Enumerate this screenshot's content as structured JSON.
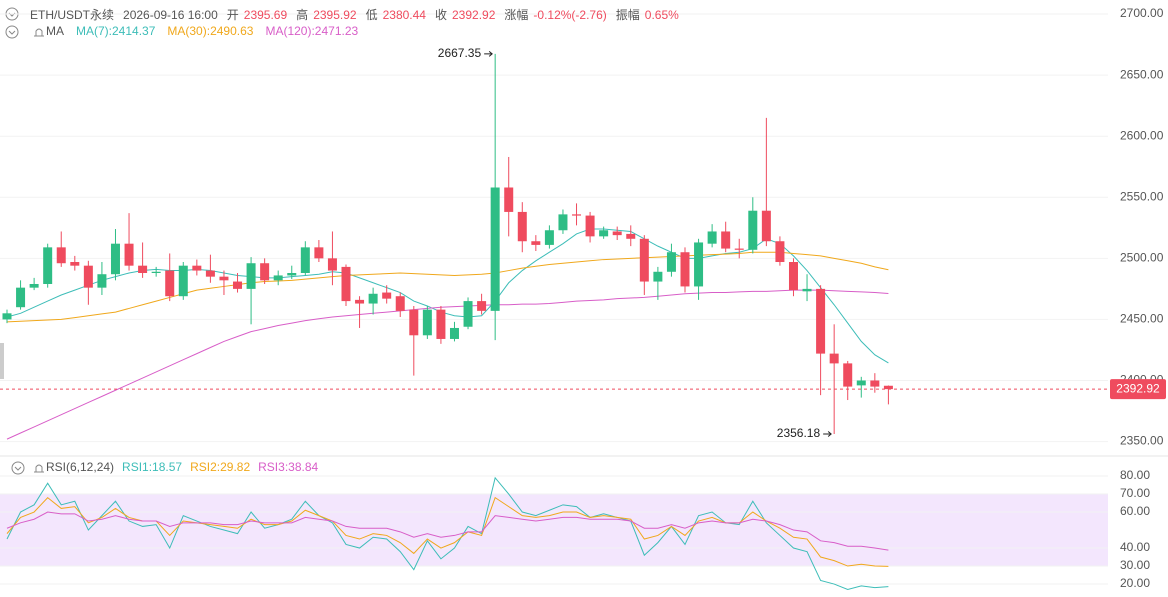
{
  "header": {
    "symbol": "ETH/USDT永续",
    "time": "2026-09-16 16:00",
    "open_label": "开",
    "high_label": "高",
    "low_label": "低",
    "close_label": "收",
    "change_label": "涨幅",
    "change": "-0.12%(-2.76)",
    "amplitude_label": "振幅",
    "amplitude": "0.65%",
    "ma_label": "MA"
  },
  "chart_data": [
    {
      "type": "candlestick",
      "up_color": "#2ebd85",
      "down_color": "#ef4b5e",
      "open": [
        2450,
        2460,
        2476,
        2479,
        2509,
        2497,
        2494,
        2476,
        2487,
        2512,
        2494,
        2488,
        2490,
        2469,
        2494,
        2490,
        2485,
        2481,
        2475,
        2496,
        2482,
        2486,
        2488,
        2509,
        2500,
        2493,
        2466,
        2463,
        2472,
        2469,
        2458,
        2437,
        2458,
        2434,
        2444,
        2465,
        2457,
        2558,
        2538,
        2514,
        2511,
        2523,
        2536,
        2535,
        2518,
        2522,
        2520,
        2516,
        2481,
        2489,
        2505,
        2477,
        2512,
        2522,
        2508,
        2507,
        2539,
        2514,
        2497,
        2473,
        2475,
        2422,
        2414,
        2396,
        2400,
        2395.69
      ],
      "high": [
        2458,
        2482,
        2484,
        2512,
        2522,
        2502,
        2498,
        2497,
        2524,
        2537,
        2513,
        2493,
        2504,
        2497,
        2499,
        2503,
        2490,
        2488,
        2501,
        2500,
        2490,
        2494,
        2514,
        2515,
        2522,
        2495,
        2469,
        2476,
        2478,
        2472,
        2461,
        2461,
        2461,
        2448,
        2468,
        2471,
        2667.35,
        2583,
        2546,
        2519,
        2527,
        2540,
        2545,
        2538,
        2526,
        2526,
        2527,
        2519,
        2493,
        2512,
        2509,
        2516,
        2528,
        2530,
        2516,
        2550,
        2615,
        2518,
        2500,
        2487,
        2478,
        2446,
        2416,
        2403,
        2406,
        2395.92
      ],
      "low": [
        2447,
        2458,
        2474,
        2476,
        2493,
        2490,
        2462,
        2470,
        2482,
        2490,
        2484,
        2485,
        2465,
        2466,
        2486,
        2480,
        2470,
        2472,
        2446,
        2479,
        2478,
        2483,
        2486,
        2497,
        2478,
        2461,
        2443,
        2454,
        2463,
        2452,
        2404,
        2434,
        2430,
        2432,
        2442,
        2454,
        2433,
        2518,
        2505,
        2506,
        2508,
        2520,
        2527,
        2513,
        2516,
        2515,
        2510,
        2470,
        2466,
        2485,
        2472,
        2466,
        2509,
        2505,
        2500,
        2504,
        2510,
        2494,
        2469,
        2465,
        2388,
        2356.18,
        2384,
        2386,
        2390,
        2380.44
      ],
      "close": [
        2455,
        2476,
        2479,
        2509,
        2496,
        2494,
        2476,
        2487,
        2512,
        2494,
        2488,
        2489,
        2469,
        2494,
        2490,
        2485,
        2482,
        2475,
        2496,
        2482,
        2486,
        2488,
        2509,
        2500,
        2490,
        2465,
        2463,
        2471,
        2467,
        2457,
        2437,
        2458,
        2434,
        2443,
        2465,
        2457,
        2558,
        2538,
        2514,
        2511,
        2523,
        2536,
        2535,
        2518,
        2523,
        2519,
        2516,
        2481,
        2489,
        2505,
        2477,
        2513,
        2522,
        2508,
        2507,
        2539,
        2514,
        2497,
        2474,
        2475,
        2422,
        2414,
        2395,
        2400,
        2395,
        2392.92
      ],
      "series": [
        {
          "name": "MA(7):2414.37",
          "color": "#3dbdb8",
          "values": [
            2452,
            2455,
            2460,
            2465,
            2470,
            2474,
            2478,
            2482,
            2485,
            2488,
            2490,
            2491,
            2490,
            2490,
            2491,
            2490,
            2488,
            2486,
            2485,
            2484,
            2484,
            2485,
            2486,
            2487,
            2489,
            2488,
            2484,
            2480,
            2476,
            2472,
            2465,
            2461,
            2456,
            2453,
            2452,
            2453,
            2465,
            2480,
            2490,
            2498,
            2505,
            2512,
            2520,
            2524,
            2524,
            2523,
            2522,
            2516,
            2510,
            2505,
            2500,
            2500,
            2502,
            2504,
            2505,
            2508,
            2516,
            2512,
            2502,
            2490,
            2476,
            2462,
            2447,
            2432,
            2421,
            2414.37
          ]
        },
        {
          "name": "MA(30):2490.63",
          "color": "#f0a81c",
          "values": [
            2448,
            2448.5,
            2449,
            2449.5,
            2450,
            2451.5,
            2453,
            2454.5,
            2456,
            2459,
            2462,
            2465,
            2468,
            2471,
            2474,
            2475.5,
            2477,
            2478.5,
            2480,
            2481,
            2481.5,
            2482,
            2483,
            2484,
            2485,
            2486,
            2486.5,
            2487,
            2487.5,
            2488,
            2487.5,
            2487,
            2486.5,
            2486,
            2486.5,
            2487,
            2488,
            2490,
            2492,
            2493.5,
            2495,
            2496,
            2497,
            2498,
            2499,
            2499.5,
            2500,
            2500.5,
            2501,
            2501.5,
            2502,
            2502.5,
            2503,
            2503.5,
            2504,
            2505,
            2505,
            2505,
            2504,
            2503,
            2502,
            2500,
            2498,
            2496,
            2493,
            2490.63
          ]
        },
        {
          "name": "MA(120):2471.23",
          "color": "#d85ec8",
          "values": [
            2352,
            2357,
            2362,
            2367,
            2372,
            2377,
            2382,
            2387,
            2392,
            2397,
            2402,
            2407,
            2412,
            2417,
            2422,
            2427,
            2432,
            2436,
            2440,
            2442.5,
            2445,
            2447,
            2449,
            2450.5,
            2452,
            2453,
            2454,
            2455,
            2456,
            2457,
            2458,
            2459,
            2460,
            2460.5,
            2461,
            2461.5,
            2462,
            2462,
            2462.5,
            2462.5,
            2463,
            2464,
            2465,
            2465.5,
            2466,
            2467,
            2467.5,
            2468,
            2469,
            2470,
            2471,
            2471.5,
            2472,
            2472,
            2472.5,
            2473,
            2473,
            2473.5,
            2474,
            2474,
            2474,
            2473.5,
            2473,
            2472.5,
            2472,
            2471.23
          ]
        }
      ],
      "ylim": [
        2339,
        2711.5
      ],
      "yticks": [
        {
          "value": 2350,
          "label": "2350.00"
        },
        {
          "value": 2400,
          "label": "2400.00"
        },
        {
          "value": 2450,
          "label": "2450.00"
        },
        {
          "value": 2500,
          "label": "2500.00"
        },
        {
          "value": 2550,
          "label": "2550.00"
        },
        {
          "value": 2600,
          "label": "2600.00"
        },
        {
          "value": 2650,
          "label": "2650.00"
        },
        {
          "value": 2700,
          "label": "2700.00"
        }
      ],
      "grid": true
    },
    {
      "type": "line",
      "title": "RSI(6,12,24)",
      "band": [
        30,
        70
      ],
      "band_color": "#f3e6fd",
      "series": [
        {
          "name": "RSI1:18.57",
          "color": "#3dbdb8",
          "values": [
            45,
            60,
            64,
            76,
            64,
            66,
            50,
            58,
            66,
            55,
            52,
            53,
            40,
            58,
            55,
            52,
            50,
            48,
            60,
            51,
            53,
            56,
            66,
            58,
            54,
            42,
            40,
            46,
            45,
            38,
            28,
            44,
            34,
            40,
            52,
            48,
            79,
            70,
            60,
            58,
            61,
            64,
            63,
            57,
            59,
            57,
            55,
            36,
            43,
            52,
            42,
            58,
            60,
            54,
            53,
            66,
            54,
            47,
            40,
            38,
            22,
            20,
            17,
            19,
            18,
            18.57
          ]
        },
        {
          "name": "RSI2:29.82",
          "color": "#f0a81c",
          "values": [
            48,
            57,
            60,
            68,
            62,
            63,
            54,
            57,
            62,
            57,
            55,
            55,
            47,
            55,
            54,
            53,
            52,
            51,
            56,
            53,
            53,
            55,
            61,
            58,
            55,
            47,
            45,
            48,
            47,
            43,
            37,
            45,
            40,
            43,
            49,
            47,
            68,
            63,
            58,
            57,
            58,
            60,
            60,
            57,
            58,
            57,
            56,
            45,
            47,
            52,
            47,
            55,
            57,
            54,
            54,
            60,
            55,
            51,
            46,
            45,
            35,
            33,
            30,
            31,
            30,
            29.82
          ]
        },
        {
          "name": "RSI3:38.84",
          "color": "#d85ec8",
          "values": [
            51,
            54,
            56,
            60,
            59,
            59,
            55,
            56,
            58,
            56,
            55,
            55,
            52,
            54,
            54,
            54,
            53,
            53,
            55,
            54,
            54,
            54,
            57,
            56,
            55,
            52,
            51,
            51,
            51,
            49,
            46,
            48,
            46,
            47,
            49,
            49,
            58,
            57,
            56,
            55,
            56,
            57,
            57,
            56,
            56,
            56,
            55,
            51,
            51,
            53,
            51,
            54,
            55,
            54,
            54,
            56,
            55,
            53,
            50,
            49,
            44,
            43,
            41,
            41,
            40,
            38.84
          ]
        }
      ],
      "ylim": [
        12.8,
        88.9
      ],
      "yticks": [
        {
          "value": 20,
          "label": "20.00"
        },
        {
          "value": 30,
          "label": "30.00"
        },
        {
          "value": 40,
          "label": "40.00"
        },
        {
          "value": 60,
          "label": "60.00"
        },
        {
          "value": 70,
          "label": "70.00"
        },
        {
          "value": 80,
          "label": "80.00"
        }
      ],
      "grid": true
    }
  ]
}
